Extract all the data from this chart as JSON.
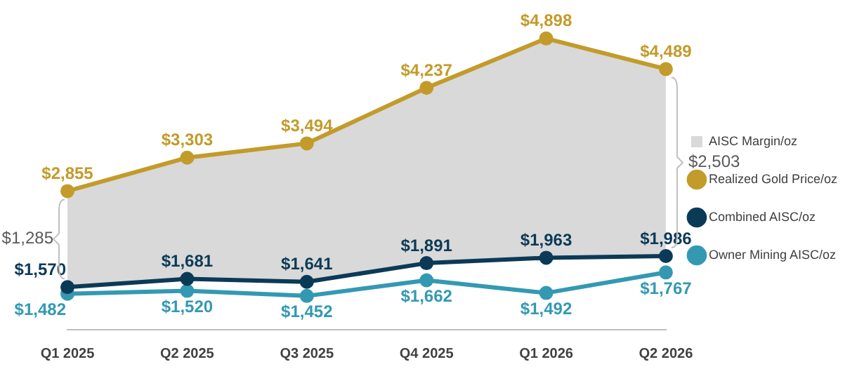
{
  "chart_data": {
    "type": "line",
    "categories": [
      "Q1 2025",
      "Q2 2025",
      "Q3 2025",
      "Q4 2025",
      "Q1 2026",
      "Q2 2026"
    ],
    "series": [
      {
        "name": "AISC Margin/oz",
        "type": "area",
        "color": "#d9d9d9",
        "values": [
          null,
          null,
          null,
          null,
          null,
          null
        ],
        "lower": [
          1570,
          1681,
          1641,
          1891,
          1963,
          1986
        ],
        "upper": [
          2855,
          3303,
          3494,
          4237,
          4898,
          4489
        ]
      },
      {
        "name": "Realized Gold Price/oz",
        "color": "#c39b2a",
        "values": [
          2855,
          3303,
          3494,
          4237,
          4898,
          4489
        ],
        "value_labels": [
          "$2,855",
          "$3,303",
          "$3,494",
          "$4,237",
          "$4,898",
          "$4,489"
        ]
      },
      {
        "name": "Combined AISC/oz",
        "color": "#0b3a57",
        "values": [
          1570,
          1681,
          1641,
          1891,
          1963,
          1986
        ],
        "value_labels": [
          "$1,570",
          "$1,681",
          "$1,641",
          "$1,891",
          "$1,963",
          "$1,986"
        ]
      },
      {
        "name": "Owner Mining AISC/oz",
        "color": "#3399b3",
        "values": [
          1482,
          1520,
          1452,
          1662,
          1492,
          1767
        ],
        "value_labels": [
          "$1,482",
          "$1,520",
          "$1,452",
          "$1,662",
          "$1,492",
          "$1,767"
        ]
      }
    ],
    "annotations": [
      "$1,285",
      "$2,503"
    ],
    "legend": "right",
    "grid": false,
    "marker": "circle"
  }
}
